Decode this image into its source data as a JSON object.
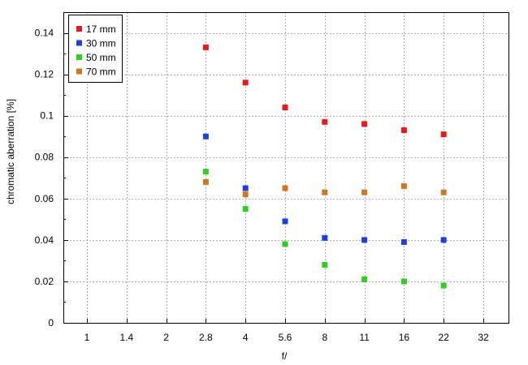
{
  "chart_data": {
    "type": "scatter",
    "xlabel": "f/",
    "ylabel": "chromatic  aberration [%]",
    "x_scale": "log2",
    "categories": [
      "1",
      "1.4",
      "2",
      "2.8",
      "4",
      "5.6",
      "8",
      "11",
      "16",
      "22",
      "32"
    ],
    "ylim": [
      0,
      0.15
    ],
    "y_ticks": [
      "0",
      "0.02",
      "0.04",
      "0.06",
      "0.08",
      "0.1",
      "0.12",
      "0.14"
    ],
    "grid": true,
    "legend_position": "top-left",
    "series": [
      {
        "name": "17 mm",
        "color": "#e41a1c",
        "x": [
          "2.8",
          "4",
          "5.6",
          "8",
          "11",
          "16",
          "22"
        ],
        "values": [
          0.133,
          0.116,
          0.104,
          0.097,
          0.096,
          0.093,
          0.091
        ]
      },
      {
        "name": "30 mm",
        "color": "#1f3fd6",
        "x": [
          "2.8",
          "4",
          "5.6",
          "8",
          "11",
          "16",
          "22"
        ],
        "values": [
          0.09,
          0.065,
          0.049,
          0.041,
          0.04,
          0.039,
          0.04
        ]
      },
      {
        "name": "50 mm",
        "color": "#33cc22",
        "x": [
          "2.8",
          "4",
          "5.6",
          "8",
          "11",
          "16",
          "22"
        ],
        "values": [
          0.073,
          0.055,
          0.038,
          0.028,
          0.021,
          0.02,
          0.018
        ]
      },
      {
        "name": "70 mm",
        "color": "#cc7722",
        "x": [
          "2.8",
          "4",
          "5.6",
          "8",
          "11",
          "16",
          "22"
        ],
        "values": [
          0.068,
          0.062,
          0.065,
          0.063,
          0.063,
          0.066,
          0.063
        ]
      }
    ]
  }
}
